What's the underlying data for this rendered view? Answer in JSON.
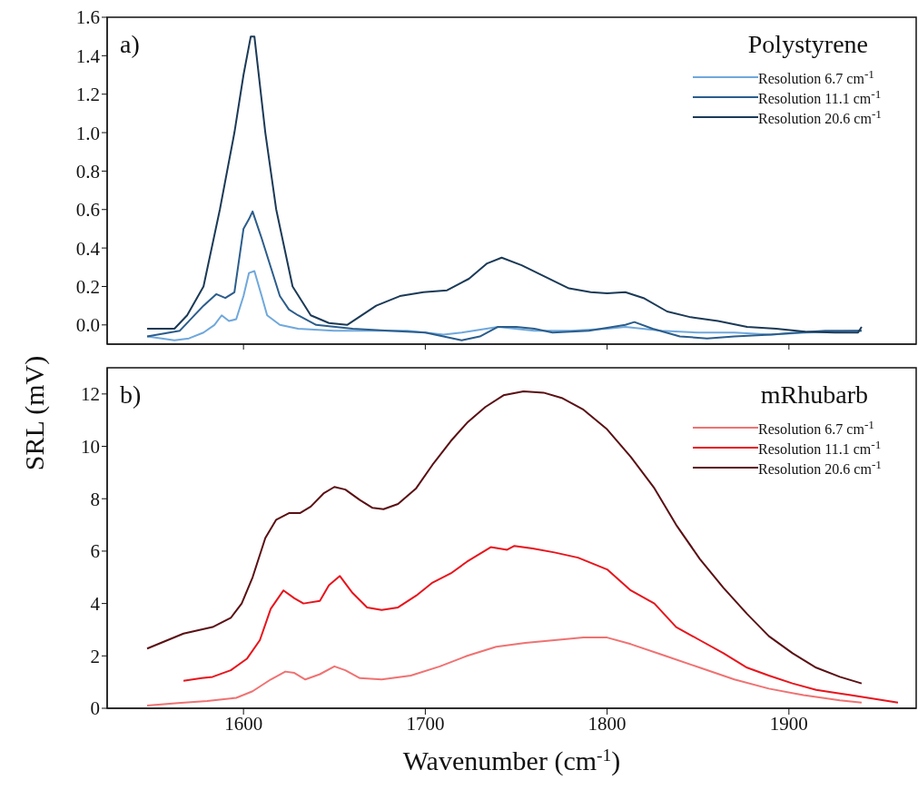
{
  "chart_data": [
    {
      "type": "line",
      "annotations": [
        "a)",
        "Polystyrene"
      ],
      "xlim": [
        1525,
        1970
      ],
      "xticks": [
        1600,
        1700,
        1800,
        1900
      ],
      "ylim": [
        -0.1,
        1.6
      ],
      "yticks": [
        {
          "value": 0,
          "label": "0.0"
        },
        0.2,
        0.4,
        0.6,
        0.8,
        {
          "value": 1,
          "label": "1.0"
        },
        1.2,
        1.4,
        1.6
      ],
      "tick_labels": "y",
      "legend": "top right",
      "series": [
        {
          "name": "Resolution 6.7 cm$^{-1}$",
          "color": "#6fa8dc",
          "x": [
            1547,
            1555,
            1562,
            1570,
            1578,
            1584,
            1588,
            1592,
            1596,
            1600,
            1603,
            1606,
            1610,
            1613,
            1620,
            1630,
            1650,
            1670,
            1690,
            1700,
            1710,
            1720,
            1740,
            1760,
            1780,
            1800,
            1810,
            1830,
            1850,
            1870,
            1890,
            1910,
            1940
          ],
          "values": [
            -0.06,
            -0.07,
            -0.08,
            -0.07,
            -0.04,
            0.0,
            0.05,
            0.02,
            0.03,
            0.15,
            0.27,
            0.28,
            0.15,
            0.05,
            0.0,
            -0.02,
            -0.03,
            -0.03,
            -0.03,
            -0.04,
            -0.05,
            -0.04,
            -0.01,
            -0.03,
            -0.03,
            -0.02,
            -0.01,
            -0.03,
            -0.04,
            -0.04,
            -0.05,
            -0.04,
            -0.03
          ]
        },
        {
          "name": "Resolution 11.1 cm$^{-1}$",
          "color": "#2b5d8c",
          "x": [
            1547,
            1565,
            1578,
            1585,
            1590,
            1595,
            1600,
            1603,
            1605,
            1610,
            1615,
            1620,
            1625,
            1630,
            1640,
            1660,
            1680,
            1700,
            1710,
            1720,
            1730,
            1740,
            1750,
            1760,
            1770,
            1790,
            1810,
            1815,
            1825,
            1840,
            1855,
            1870,
            1890,
            1905,
            1920,
            1940
          ],
          "values": [
            -0.06,
            -0.03,
            0.1,
            0.16,
            0.14,
            0.17,
            0.5,
            0.55,
            0.59,
            0.45,
            0.3,
            0.15,
            0.08,
            0.05,
            0.0,
            -0.02,
            -0.03,
            -0.04,
            -0.06,
            -0.08,
            -0.06,
            -0.01,
            -0.01,
            -0.02,
            -0.04,
            -0.03,
            0.0,
            0.015,
            -0.02,
            -0.06,
            -0.07,
            -0.06,
            -0.05,
            -0.04,
            -0.03,
            -0.03
          ]
        },
        {
          "name": "Resolution 20.6 cm$^{-1}$",
          "color": "#1b3a57",
          "x": [
            1547,
            1562,
            1569,
            1578,
            1587,
            1595,
            1600,
            1604,
            1606,
            1612,
            1618,
            1627,
            1637,
            1647,
            1657,
            1673,
            1686,
            1699,
            1712,
            1724,
            1734,
            1742,
            1753,
            1766,
            1779,
            1791,
            1800,
            1810,
            1820,
            1833,
            1846,
            1861,
            1877,
            1893,
            1909,
            1925,
            1938,
            1940
          ],
          "values": [
            -0.02,
            -0.02,
            0.05,
            0.2,
            0.6,
            1.0,
            1.3,
            1.5,
            1.5,
            1.0,
            0.6,
            0.2,
            0.05,
            0.01,
            0.0,
            0.1,
            0.15,
            0.17,
            0.18,
            0.24,
            0.32,
            0.35,
            0.31,
            0.25,
            0.19,
            0.17,
            0.165,
            0.17,
            0.14,
            0.07,
            0.04,
            0.02,
            -0.01,
            -0.02,
            -0.035,
            -0.04,
            -0.04,
            -0.01
          ]
        }
      ]
    },
    {
      "type": "line",
      "annotations": [
        "b)",
        "mRhubarb"
      ],
      "xlabel": "Wavenumber (cm$^{-1}$)",
      "ylabel": "SRL (mV)",
      "xlim": [
        1525,
        1970
      ],
      "xticks": [
        1600,
        1700,
        1800,
        1900
      ],
      "ylim": [
        0,
        13
      ],
      "yticks": [
        0,
        2,
        4,
        6,
        8,
        10,
        12
      ],
      "legend": "top right",
      "series": [
        {
          "name": "Resolution 6.7 cm$^{-1}$",
          "color": "#f07272",
          "x": [
            1547,
            1564,
            1580,
            1596,
            1605,
            1615,
            1623,
            1628,
            1634,
            1642,
            1650,
            1656,
            1664,
            1676,
            1692,
            1708,
            1723,
            1739,
            1755,
            1771,
            1787,
            1800,
            1813,
            1832,
            1851,
            1870,
            1889,
            1908,
            1928,
            1940
          ],
          "values": [
            0.1,
            0.2,
            0.28,
            0.4,
            0.65,
            1.1,
            1.4,
            1.35,
            1.1,
            1.3,
            1.6,
            1.45,
            1.15,
            1.1,
            1.25,
            1.6,
            2.0,
            2.35,
            2.5,
            2.6,
            2.7,
            2.7,
            2.45,
            2.0,
            1.55,
            1.1,
            0.75,
            0.5,
            0.3,
            0.22
          ]
        },
        {
          "name": "Resolution 11.1 cm$^{-1}$",
          "color": "#e8141c",
          "x": [
            1567,
            1577,
            1583,
            1593,
            1602,
            1609,
            1615,
            1622,
            1628,
            1633,
            1642,
            1647,
            1653,
            1660,
            1668,
            1676,
            1685,
            1695,
            1704,
            1714,
            1723,
            1736,
            1745,
            1749,
            1759,
            1771,
            1784,
            1800,
            1813,
            1826,
            1838,
            1851,
            1864,
            1877,
            1889,
            1902,
            1915,
            1934,
            1960
          ],
          "values": [
            1.05,
            1.15,
            1.2,
            1.45,
            1.9,
            2.6,
            3.8,
            4.5,
            4.2,
            4.0,
            4.1,
            4.7,
            5.05,
            4.4,
            3.85,
            3.75,
            3.85,
            4.3,
            4.8,
            5.15,
            5.6,
            6.15,
            6.05,
            6.2,
            6.1,
            5.95,
            5.75,
            5.3,
            4.5,
            4.0,
            3.1,
            2.6,
            2.1,
            1.55,
            1.25,
            0.95,
            0.7,
            0.5,
            0.22
          ]
        },
        {
          "name": "Resolution 20.6 cm$^{-1}$",
          "color": "#5a1014",
          "x": [
            1547,
            1567,
            1583,
            1593,
            1599,
            1605,
            1612,
            1618,
            1625,
            1631,
            1637,
            1644,
            1650,
            1656,
            1664,
            1671,
            1677,
            1685,
            1695,
            1704,
            1714,
            1723,
            1733,
            1743,
            1754,
            1765,
            1775,
            1787,
            1800,
            1813,
            1826,
            1838,
            1851,
            1864,
            1877,
            1889,
            1902,
            1915,
            1928,
            1940
          ],
          "values": [
            2.28,
            2.85,
            3.1,
            3.45,
            4.0,
            5.0,
            6.5,
            7.2,
            7.45,
            7.45,
            7.7,
            8.2,
            8.45,
            8.35,
            7.95,
            7.65,
            7.6,
            7.8,
            8.4,
            9.3,
            10.2,
            10.9,
            11.5,
            11.95,
            12.1,
            12.05,
            11.85,
            11.4,
            10.65,
            9.6,
            8.4,
            7.0,
            5.7,
            4.6,
            3.6,
            2.75,
            2.1,
            1.55,
            1.2,
            0.95
          ]
        }
      ]
    }
  ]
}
